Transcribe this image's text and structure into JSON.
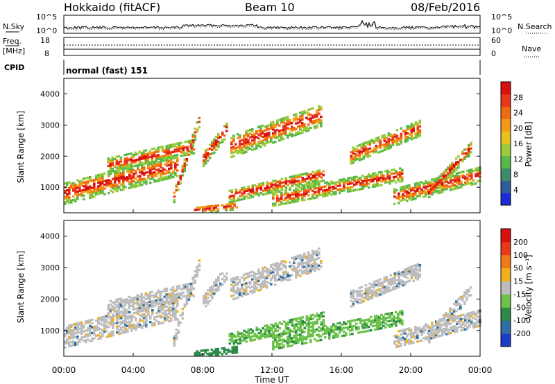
{
  "header": {
    "title": "Hokkaido (fitACF)",
    "beam": "Beam 10",
    "date": "08/Feb/2016"
  },
  "top_panels": {
    "nsky_label": "N.Sky",
    "nsearch_label": "N.Search",
    "noise_ticks_left": [
      "10^5",
      "10^0"
    ],
    "noise_ticks_right": [
      "10^5",
      "10^0"
    ],
    "freq_label": "Freq.",
    "freq_unit": "[MHz]",
    "freq_ticks": [
      "18",
      "8"
    ],
    "nave_label": "Nave",
    "nave_ticks": [
      "60",
      "0"
    ],
    "cpid_label": "CPID",
    "cpid_value": "normal (fast) 151"
  },
  "chart_data": [
    {
      "type": "heatmap",
      "name": "power",
      "ylabel": "Slant Range [km]",
      "ylim": [
        180,
        4500
      ],
      "yticks": [
        "1000",
        "2000",
        "3000",
        "4000"
      ],
      "xlim": [
        0,
        24
      ],
      "colorbar_label": "Power [dB]",
      "colorbar_ticks": [
        "4",
        "8",
        "12",
        "16",
        "20",
        "24",
        "28"
      ],
      "colorbar_colors": [
        "#1a2bd8",
        "#2f5d9a",
        "#3f8a6a",
        "#58b84a",
        "#9acb3a",
        "#e8c21a",
        "#f29a18",
        "#f06a14",
        "#e8361a",
        "#d81010"
      ]
    },
    {
      "type": "heatmap",
      "name": "velocity",
      "ylabel": "Slant Range [km]",
      "ylim": [
        180,
        4500
      ],
      "yticks": [
        "1000",
        "2000",
        "3000",
        "4000"
      ],
      "xlim": [
        0,
        24
      ],
      "xlabel": "Time UT",
      "xticks": [
        "00:00",
        "04:00",
        "08:00",
        "12:00",
        "16:00",
        "20:00",
        "00:00"
      ],
      "colorbar_label": "Velocity [m s⁻¹]",
      "colorbar_ticks": [
        "200",
        "100",
        "50",
        "15",
        "-15",
        "-50",
        "-100",
        "-200"
      ],
      "colorbar_colors": [
        "#1f3cc8",
        "#2e6fa0",
        "#2f8a4a",
        "#6cc24a",
        "#bdbdbd",
        "#f0b020",
        "#f07a18",
        "#e83a18",
        "#d81010"
      ]
    }
  ]
}
